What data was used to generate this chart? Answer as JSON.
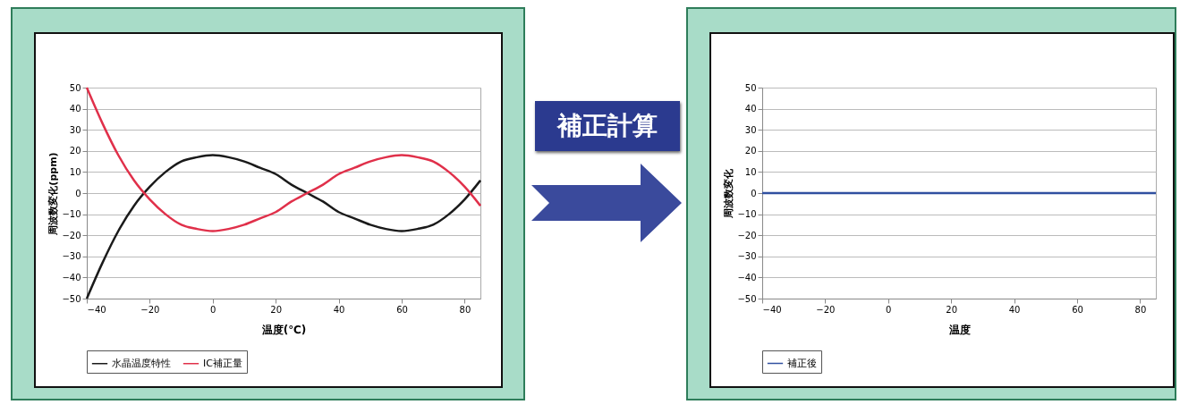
{
  "chart_data": [
    {
      "type": "line",
      "xlabel": "温度(℃)",
      "ylabel": "周波数変化(ppm)",
      "x": [
        -40,
        -35,
        -30,
        -25,
        -20,
        -15,
        -10,
        -5,
        0,
        5,
        10,
        15,
        20,
        25,
        30,
        35,
        40,
        45,
        50,
        55,
        60,
        65,
        70,
        75,
        80,
        85
      ],
      "series": [
        {
          "name": "水晶温度特性",
          "color": "#1a1a1a",
          "values": [
            -50,
            -33,
            -18,
            -6,
            3,
            10,
            15,
            17,
            18,
            17,
            15,
            12,
            9,
            4,
            0,
            -4,
            -9,
            -12,
            -15,
            -17,
            -18,
            -17,
            -15,
            -10,
            -3,
            6
          ]
        },
        {
          "name": "IC補正量",
          "color": "#e0304a",
          "values": [
            50,
            33,
            18,
            6,
            -3,
            -10,
            -15,
            -17,
            -18,
            -17,
            -15,
            -12,
            -9,
            -4,
            0,
            4,
            9,
            12,
            15,
            17,
            18,
            17,
            15,
            10,
            3,
            -6
          ]
        }
      ],
      "xlim": [
        -40,
        85
      ],
      "xticks": [
        -40,
        -20,
        0,
        20,
        40,
        60,
        80
      ],
      "ylim": [
        -50,
        50
      ],
      "yticks": [
        -50,
        -40,
        -30,
        -20,
        -10,
        0,
        10,
        20,
        30,
        40,
        50
      ],
      "grid": "y",
      "legend": "bottom"
    },
    {
      "type": "line",
      "xlabel": "温度",
      "ylabel": "周波数変化",
      "x": [
        -40,
        85
      ],
      "series": [
        {
          "name": "補正後",
          "color": "#3050a0",
          "values": [
            0,
            0
          ]
        }
      ],
      "xlim": [
        -40,
        85
      ],
      "xticks": [
        -40,
        -20,
        0,
        20,
        40,
        60,
        80
      ],
      "ylim": [
        -50,
        50
      ],
      "yticks": [
        -50,
        -40,
        -30,
        -20,
        -10,
        0,
        10,
        20,
        30,
        40,
        50
      ],
      "grid": "y",
      "legend": "bottom",
      "annotations": [
        "補正計算"
      ]
    }
  ]
}
